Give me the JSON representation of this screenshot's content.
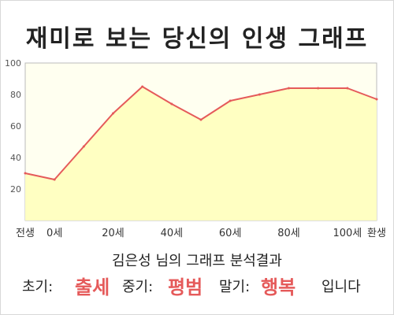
{
  "title": "재미로 보는 당신의 인생 그래프",
  "summary": "김은성 님의 그래프 분석결과",
  "result": {
    "early_label": "초기:",
    "early_value": "출세",
    "mid_label": "중기:",
    "mid_value": "평범",
    "late_label": "말기:",
    "late_value": "행복",
    "ending": "입니다"
  },
  "colors": {
    "line": "#e55a5a",
    "fill": "#ffffc2",
    "plot_bg": "#fffff0",
    "highlight": "#e55a5a"
  },
  "chart_data": {
    "type": "area",
    "categories": [
      "전생",
      "0세",
      "20세",
      "40세",
      "60세",
      "80세",
      "100세",
      "환생"
    ],
    "x": [
      -10,
      0,
      10,
      20,
      30,
      40,
      50,
      60,
      70,
      80,
      90,
      100,
      110
    ],
    "values": [
      30,
      26,
      47,
      68,
      85,
      74,
      64,
      76,
      80,
      84,
      84,
      84,
      77
    ],
    "ylim": [
      0,
      100
    ],
    "yticks": [
      20,
      40,
      60,
      80,
      100
    ],
    "xlim": [
      -10,
      110
    ],
    "title": "재미로 보는 당신의 인생 그래프",
    "xlabel": "",
    "ylabel": "",
    "grid": false,
    "legend": "none"
  }
}
